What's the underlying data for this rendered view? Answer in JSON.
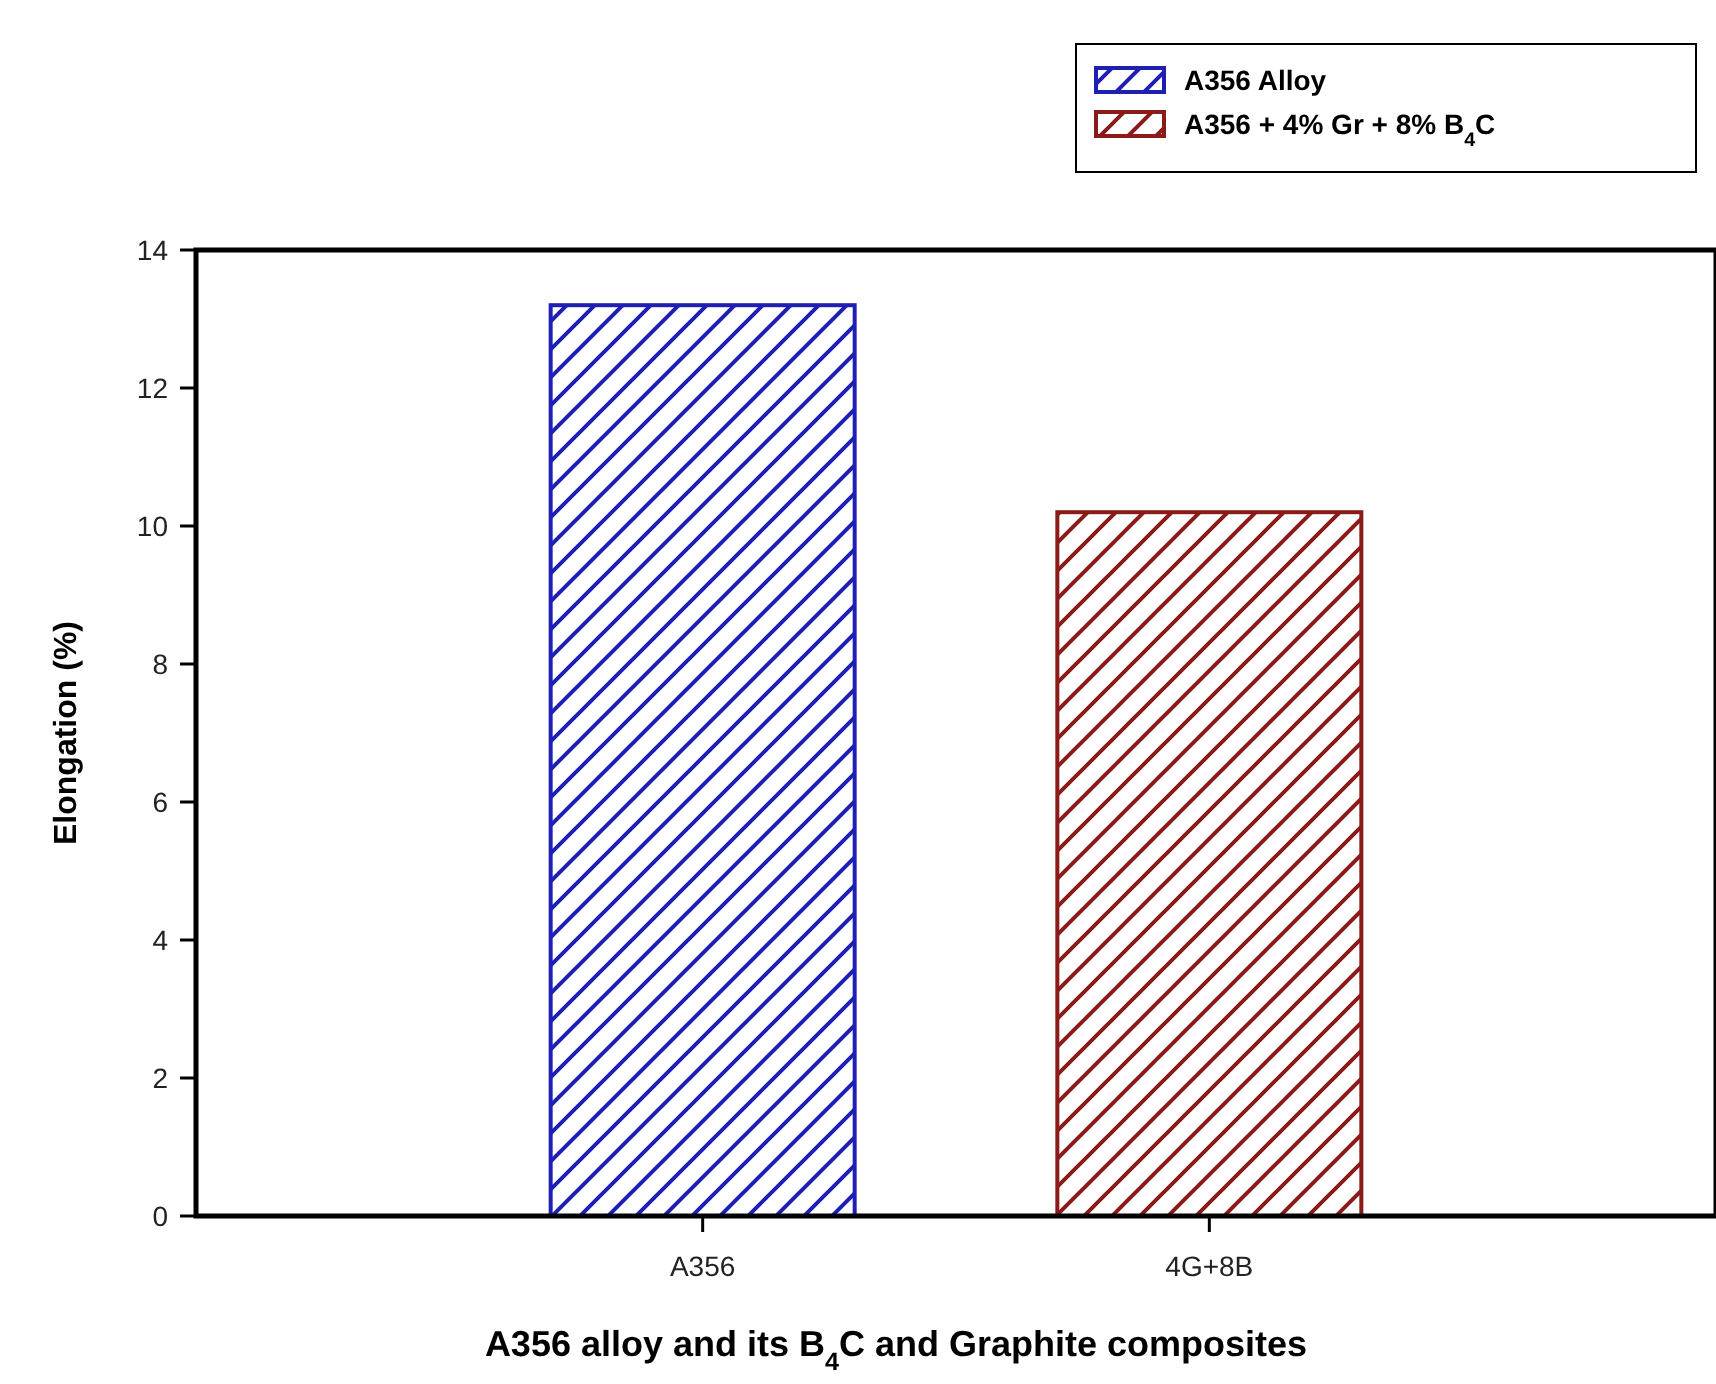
{
  "chart_data": {
    "type": "bar",
    "xlabel": "A356 alloy and its B$_{4}$C and Graphite composites",
    "ylabel": "Elongation (%)",
    "categories": [
      "A356",
      "4G+8B"
    ],
    "series": [
      {
        "name": "A356 Alloy",
        "color": "#1f1fb4",
        "values": [
          13.2,
          null
        ]
      },
      {
        "name": "A356 + 4% Gr + 8% B$_{4}$C",
        "color": "#8b1a1a",
        "values": [
          null,
          10.2
        ]
      }
    ],
    "ylim": [
      0,
      14
    ],
    "yticks": [
      0,
      2,
      4,
      6,
      8,
      10,
      12,
      14
    ],
    "grid": false,
    "legend": "top right"
  }
}
